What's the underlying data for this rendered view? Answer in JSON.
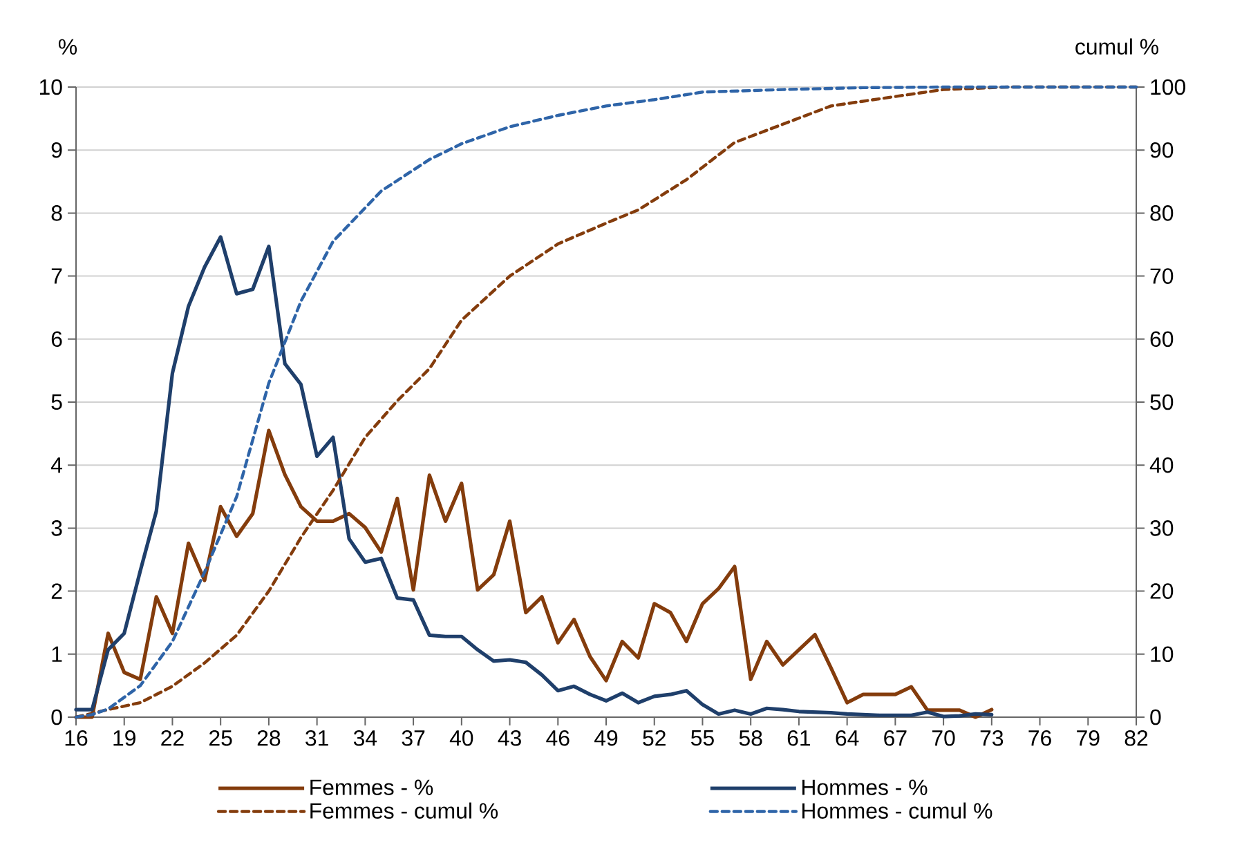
{
  "chart_data": {
    "type": "line",
    "ylabel": "%",
    "y2label": "cumul %",
    "xlim": [
      16,
      82
    ],
    "xticks": [
      16,
      19,
      22,
      25,
      28,
      31,
      34,
      37,
      40,
      43,
      46,
      49,
      52,
      55,
      58,
      61,
      64,
      67,
      70,
      73,
      76,
      79,
      82
    ],
    "ylim": [
      0,
      10
    ],
    "yticks": [
      0,
      1,
      2,
      3,
      4,
      5,
      6,
      7,
      8,
      9,
      10
    ],
    "y2lim": [
      0,
      100
    ],
    "y2ticks": [
      0,
      10,
      20,
      30,
      40,
      50,
      60,
      70,
      80,
      90,
      100
    ],
    "grid": "y",
    "legend": "bottom",
    "series": [
      {
        "name": "Femmes - %",
        "color": "#843c0c",
        "line_style": "solid",
        "x": [
          16,
          17,
          18,
          19,
          20,
          21,
          22,
          23,
          24,
          25,
          26,
          27,
          28,
          29,
          30,
          31,
          32,
          33,
          34,
          35,
          36,
          37,
          38,
          39,
          40,
          41,
          42,
          43,
          44,
          45,
          46,
          47,
          48,
          49,
          50,
          51,
          52,
          53,
          54,
          55,
          56,
          57,
          58,
          59,
          60,
          61,
          62,
          63,
          64,
          65,
          66,
          67,
          68,
          69,
          70,
          71,
          72,
          73
        ],
        "values": [
          0,
          0,
          1.33,
          0.71,
          0.6,
          1.91,
          1.33,
          2.76,
          2.17,
          3.34,
          2.87,
          3.23,
          4.55,
          3.85,
          3.34,
          3.11,
          3.11,
          3.23,
          3.01,
          2.62,
          3.47,
          2.02,
          3.84,
          3.11,
          3.71,
          2.02,
          2.26,
          3.11,
          1.66,
          1.91,
          1.18,
          1.55,
          0.96,
          0.58,
          1.2,
          0.94,
          1.8,
          1.66,
          1.2,
          1.8,
          2.04,
          2.39,
          0.6,
          1.2,
          0.83,
          1.07,
          1.31,
          0.78,
          0.23,
          0.36,
          0.36,
          0.36,
          0.48,
          0.11,
          0.11,
          0.11,
          0,
          0.12
        ]
      },
      {
        "name": "Hommes - %",
        "color": "#1f3f6b",
        "line_style": "solid",
        "x": [
          16,
          17,
          18,
          19,
          20,
          21,
          22,
          23,
          24,
          25,
          26,
          27,
          28,
          29,
          30,
          31,
          32,
          33,
          34,
          35,
          36,
          37,
          38,
          39,
          40,
          41,
          42,
          43,
          44,
          45,
          46,
          47,
          48,
          49,
          50,
          51,
          52,
          53,
          54,
          55,
          56,
          57,
          58,
          59,
          60,
          61,
          62,
          63,
          64,
          65,
          66,
          67,
          68,
          69,
          70,
          71,
          72,
          73
        ],
        "values": [
          0.12,
          0.12,
          1.07,
          1.33,
          2.32,
          3.27,
          5.46,
          6.52,
          7.14,
          7.62,
          6.72,
          6.79,
          7.47,
          5.61,
          5.28,
          4.14,
          4.44,
          2.83,
          2.46,
          2.52,
          1.89,
          1.86,
          1.3,
          1.28,
          1.28,
          1.07,
          0.89,
          0.91,
          0.87,
          0.67,
          0.42,
          0.49,
          0.36,
          0.26,
          0.38,
          0.23,
          0.33,
          0.36,
          0.42,
          0.2,
          0.05,
          0.11,
          0.05,
          0.14,
          0.12,
          0.09,
          0.08,
          0.07,
          0.05,
          0.04,
          0.03,
          0.03,
          0.03,
          0.08,
          0.01,
          0.02,
          0.05,
          0.04
        ]
      },
      {
        "name": "Femmes - cumul %",
        "color": "#843c0c",
        "line_style": "dashed",
        "axis": "y2",
        "x": [
          16,
          18,
          20,
          22,
          24,
          26,
          28,
          30,
          32,
          34,
          36,
          38,
          40,
          43,
          46,
          49,
          51,
          54,
          57,
          60,
          63,
          67,
          70,
          74,
          82
        ],
        "values": [
          0,
          1.2,
          2.3,
          4.9,
          8.6,
          13,
          20,
          28.5,
          36,
          44.4,
          50.2,
          55.3,
          63,
          70,
          75.1,
          78.4,
          80.5,
          85.3,
          91.2,
          94.1,
          97,
          98.5,
          99.6,
          100,
          100
        ]
      },
      {
        "name": "Hommes - cumul %",
        "color": "#2e64a8",
        "line_style": "dashed",
        "axis": "y2",
        "x": [
          16,
          17,
          18,
          20,
          22,
          24,
          26,
          28,
          30,
          32,
          35,
          38,
          40,
          43,
          46,
          49,
          52,
          55,
          60,
          65,
          70,
          82
        ],
        "values": [
          0,
          0.4,
          1.3,
          5,
          12,
          23,
          35,
          53,
          66,
          75.5,
          83.5,
          88.5,
          91,
          93.7,
          95.5,
          97,
          98,
          99.2,
          99.6,
          99.9,
          100,
          100
        ]
      }
    ]
  }
}
